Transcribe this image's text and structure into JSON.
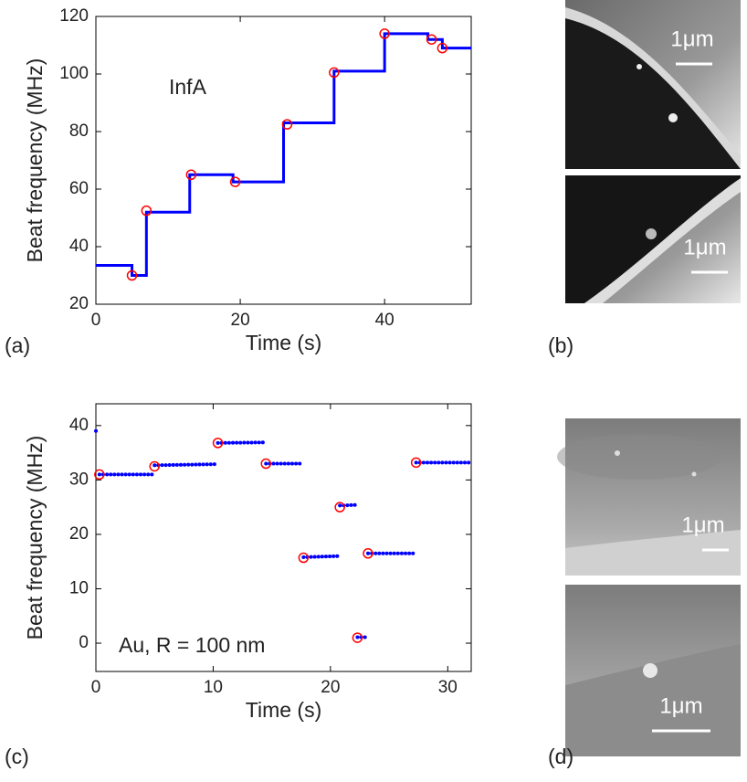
{
  "chart_data": [
    {
      "type": "line",
      "panel_label": "(a)",
      "annotation": "InfA",
      "xlabel": "Time (s)",
      "ylabel": "Beat frequency (MHz)",
      "xlim": [
        0,
        52
      ],
      "xticks": [
        0,
        20,
        40
      ],
      "ylim": [
        20,
        120
      ],
      "yticks": [
        20,
        40,
        60,
        80,
        100,
        120
      ],
      "series": [
        {
          "color": "#0000ff",
          "marker": "line",
          "x": [
            0,
            5,
            5,
            7,
            7,
            13,
            13,
            19,
            19,
            26,
            26,
            33,
            33,
            40,
            40,
            46,
            46,
            48,
            48,
            52
          ],
          "values": [
            33.5,
            33.5,
            30,
            30,
            52,
            52,
            65,
            65,
            62.5,
            62.5,
            83,
            83,
            101,
            101,
            114,
            114,
            112,
            112,
            109,
            109
          ]
        },
        {
          "color": "#ff0000",
          "marker": "circle",
          "x": [
            5,
            7,
            13.2,
            19.3,
            26.5,
            33,
            40,
            46.5,
            48
          ],
          "values": [
            30,
            52.5,
            65,
            62.5,
            82.5,
            100.5,
            114,
            112,
            109
          ]
        }
      ]
    },
    {
      "type": "scatter",
      "panel_label": "(c)",
      "annotation": "Au, R = 100 nm",
      "xlabel": "Time (s)",
      "ylabel": "Beat frequency (MHz)",
      "xlim": [
        0,
        32
      ],
      "xticks": [
        0,
        10,
        20,
        30
      ],
      "ylim": [
        -5.2,
        44
      ],
      "yticks": [
        0,
        10,
        20,
        30,
        40
      ],
      "series": [
        {
          "color": "#0000ff",
          "marker": "dots",
          "x": [
            0,
            0.2,
            0.25,
            0.3,
            5,
            5,
            5,
            10.3,
            10.35,
            10.4,
            14.3,
            14.4,
            14.5,
            17.5,
            17.6,
            17.7,
            20.7,
            20.75,
            20.8,
            22.1,
            22.2,
            22.3,
            23,
            23.1,
            23.2,
            27.1,
            27.2,
            27.3,
            32
          ],
          "values": [
            39,
            39,
            null,
            31,
            31,
            null,
            32.7,
            32.9,
            null,
            36.8,
            36.9,
            null,
            33,
            33,
            null,
            15.8,
            16,
            null,
            25.3,
            25.4,
            null,
            1.1,
            1.1,
            null,
            16.5,
            16.5,
            null,
            33.2,
            33.2
          ]
        },
        {
          "color": "#ff0000",
          "marker": "circle",
          "x": [
            0.3,
            5,
            10.4,
            14.5,
            17.7,
            20.8,
            22.3,
            23.2,
            27.3
          ],
          "values": [
            31,
            32.5,
            36.8,
            33,
            15.7,
            25,
            1,
            16.5,
            33.2
          ]
        }
      ]
    }
  ],
  "images": [
    {
      "panel_label": "(b)",
      "scale_labels": [
        "1μm",
        "1μm"
      ]
    },
    {
      "panel_label": "(d)",
      "scale_labels": [
        "1μm",
        "1μm"
      ]
    }
  ]
}
